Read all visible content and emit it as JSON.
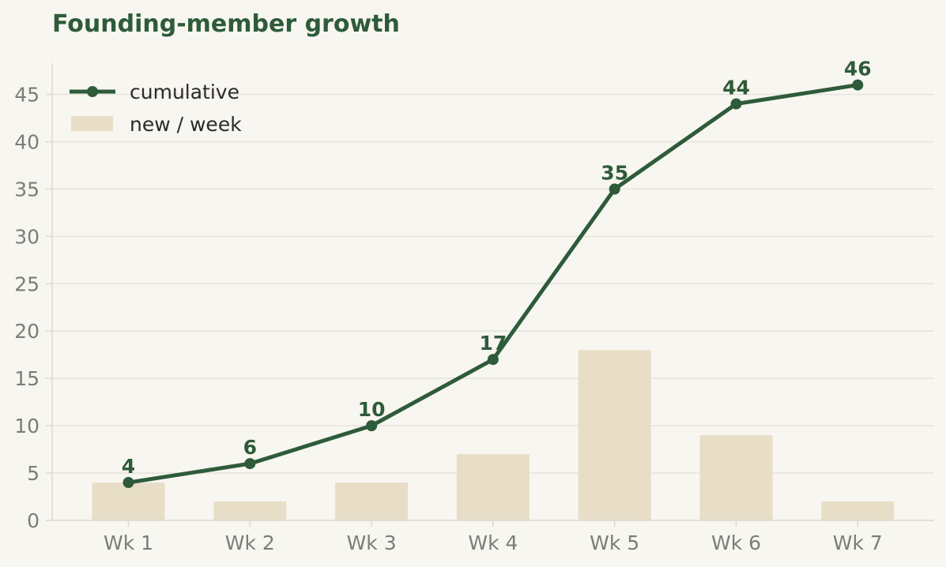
{
  "colors": {
    "background": "#f8f6f0",
    "line": "#2e5b3a",
    "bar": "#e8dec8",
    "grid": "#e6e3dc",
    "axis": "#dcd9d2",
    "tick_text": "#7b7d77",
    "legend_text": "#2a2a2a"
  },
  "chart_data": {
    "type": "bar",
    "title": "Founding-member growth",
    "xlabel": "",
    "ylabel": "",
    "categories": [
      "Wk 1",
      "Wk 2",
      "Wk 3",
      "Wk 4",
      "Wk 5",
      "Wk 6",
      "Wk 7"
    ],
    "series": [
      {
        "name": "cumulative",
        "type": "line",
        "values": [
          4,
          6,
          10,
          17,
          35,
          44,
          46
        ]
      },
      {
        "name": "new / week",
        "type": "bar",
        "values": [
          4,
          2,
          4,
          7,
          18,
          9,
          2
        ]
      }
    ],
    "data_labels": [
      "4",
      "6",
      "10",
      "17",
      "35",
      "44",
      "46"
    ],
    "ylim": [
      0,
      48.3
    ],
    "yticks": [
      0,
      5,
      10,
      15,
      20,
      25,
      30,
      35,
      40,
      45
    ],
    "grid": "horizontal",
    "legend_position": "top-left"
  }
}
